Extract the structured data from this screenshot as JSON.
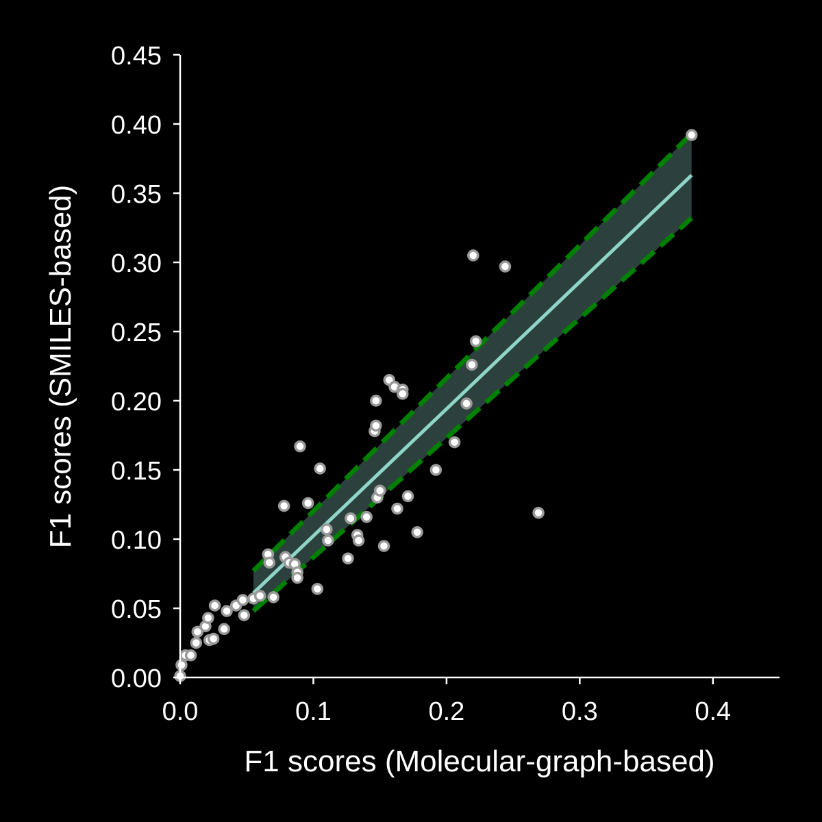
{
  "chart_data": {
    "type": "scatter",
    "xlabel": "F1 scores (Molecular-graph-based)",
    "ylabel": "F1 scores (SMILES-based)",
    "xlim": [
      0,
      0.45
    ],
    "ylim": [
      0,
      0.45
    ],
    "x_ticks": [
      "0.0",
      "0.1",
      "0.2",
      "0.3",
      "0.4"
    ],
    "y_ticks": [
      "0.00",
      "0.05",
      "0.10",
      "0.15",
      "0.20",
      "0.25",
      "0.30",
      "0.35",
      "0.40",
      "0.45"
    ],
    "x_tick_values": [
      0,
      0.1,
      0.2,
      0.3,
      0.4
    ],
    "y_tick_values": [
      0,
      0.05,
      0.1,
      0.15,
      0.2,
      0.25,
      0.3,
      0.35,
      0.4,
      0.45
    ],
    "points": [
      [
        0.0,
        0.001
      ],
      [
        0.001,
        0.009
      ],
      [
        0.004,
        0.016
      ],
      [
        0.008,
        0.016
      ],
      [
        0.012,
        0.025
      ],
      [
        0.013,
        0.033
      ],
      [
        0.019,
        0.037
      ],
      [
        0.021,
        0.043
      ],
      [
        0.022,
        0.027
      ],
      [
        0.025,
        0.028
      ],
      [
        0.026,
        0.052
      ],
      [
        0.033,
        0.035
      ],
      [
        0.035,
        0.048
      ],
      [
        0.042,
        0.052
      ],
      [
        0.047,
        0.056
      ],
      [
        0.048,
        0.045
      ],
      [
        0.055,
        0.057
      ],
      [
        0.06,
        0.059
      ],
      [
        0.066,
        0.089
      ],
      [
        0.067,
        0.083
      ],
      [
        0.07,
        0.058
      ],
      [
        0.079,
        0.087
      ],
      [
        0.082,
        0.083
      ],
      [
        0.086,
        0.082
      ],
      [
        0.088,
        0.076
      ],
      [
        0.088,
        0.072
      ],
      [
        0.078,
        0.124
      ],
      [
        0.09,
        0.167
      ],
      [
        0.096,
        0.126
      ],
      [
        0.103,
        0.064
      ],
      [
        0.105,
        0.151
      ],
      [
        0.11,
        0.107
      ],
      [
        0.111,
        0.099
      ],
      [
        0.126,
        0.086
      ],
      [
        0.128,
        0.115
      ],
      [
        0.133,
        0.103
      ],
      [
        0.134,
        0.099
      ],
      [
        0.14,
        0.116
      ],
      [
        0.146,
        0.178
      ],
      [
        0.147,
        0.182
      ],
      [
        0.147,
        0.2
      ],
      [
        0.148,
        0.13
      ],
      [
        0.15,
        0.135
      ],
      [
        0.153,
        0.095
      ],
      [
        0.157,
        0.215
      ],
      [
        0.161,
        0.21
      ],
      [
        0.163,
        0.122
      ],
      [
        0.167,
        0.208
      ],
      [
        0.167,
        0.205
      ],
      [
        0.171,
        0.131
      ],
      [
        0.178,
        0.105
      ],
      [
        0.192,
        0.15
      ],
      [
        0.206,
        0.17
      ],
      [
        0.215,
        0.198
      ],
      [
        0.219,
        0.226
      ],
      [
        0.22,
        0.305
      ],
      [
        0.222,
        0.243
      ],
      [
        0.244,
        0.297
      ],
      [
        0.269,
        0.119
      ],
      [
        0.384,
        0.392
      ]
    ],
    "fit_line": {
      "x": [
        0.055,
        0.384
      ],
      "y": [
        0.061,
        0.363
      ]
    },
    "confidence_band": {
      "x": [
        0.055,
        0.384
      ],
      "upper": [
        0.077,
        0.393
      ],
      "lower": [
        0.048,
        0.332
      ]
    },
    "colors": {
      "background": "#000000",
      "axis": "#ffffff",
      "point_fill": "#ffffff",
      "point_edge": "#9a9a9a",
      "fit_line": "#8fd6c8",
      "band_fill": "#2e4440",
      "band_edge": "#008000"
    }
  }
}
